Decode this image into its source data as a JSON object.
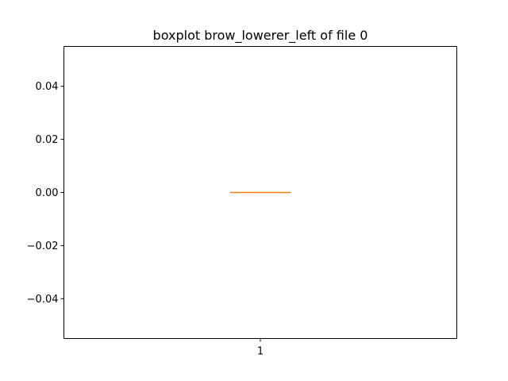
{
  "chart_data": {
    "type": "boxplot",
    "title": "boxplot brow_lowerer_left of file 0",
    "xlabel": "",
    "ylabel": "",
    "categories": [
      "1"
    ],
    "boxes": [
      {
        "category": "1",
        "whisker_low": 0.0,
        "q1": 0.0,
        "median": 0.0,
        "q3": 0.0,
        "whisker_high": 0.0
      }
    ],
    "ylim": [
      -0.055,
      0.055
    ],
    "yticks": [
      -0.04,
      -0.02,
      0.0,
      0.02,
      0.04
    ],
    "ytick_labels": [
      "−0.04",
      "−0.02",
      "0.00",
      "0.02",
      "0.04"
    ],
    "grid": false,
    "colors": {
      "box": "#000000",
      "median": "#ff7f0e",
      "axes": "#000000"
    }
  }
}
